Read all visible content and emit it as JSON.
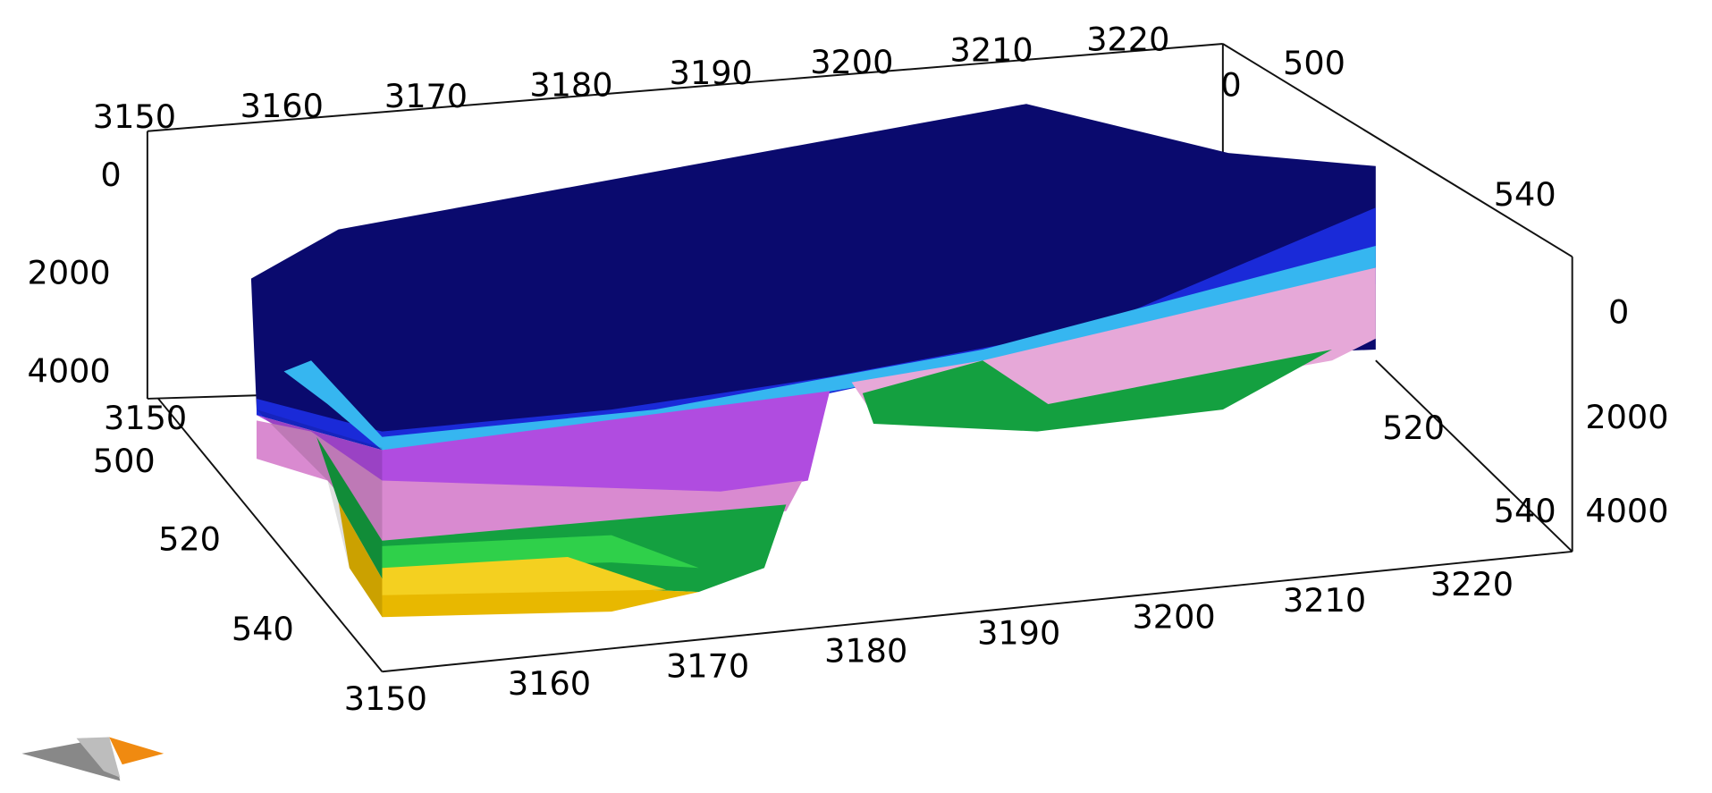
{
  "chart_data": {
    "type": "3d-volume",
    "title": "",
    "x_axis": {
      "ticks": [
        "3150",
        "3160",
        "3170",
        "3180",
        "3190",
        "3200",
        "3210",
        "3220"
      ]
    },
    "y_axis": {
      "ticks": [
        "500",
        "520",
        "540"
      ],
      "corner_label": "0"
    },
    "z_axis": {
      "ticks": [
        "0",
        "2000",
        "4000"
      ]
    },
    "layer_colors": [
      "#0a0a6e",
      "#1a2ad8",
      "#36b6f0",
      "#b04ce0",
      "#d98ad0",
      "#e6a8d8",
      "#14a040",
      "#2fd04a",
      "#e8b800",
      "#f4d020"
    ],
    "grid": false,
    "legend": "none"
  },
  "labels": {
    "top_x": [
      "3150",
      "3160",
      "3170",
      "3180",
      "3190",
      "3200",
      "3210",
      "3220"
    ],
    "bottom_x": [
      "3150",
      "3160",
      "3170",
      "3180",
      "3190",
      "3200",
      "3210",
      "3220"
    ],
    "left_z": [
      "0",
      "2000",
      "4000"
    ],
    "right_z": [
      "0",
      "2000",
      "4000"
    ],
    "left_y": [
      "500",
      "520",
      "540"
    ],
    "right_top": [
      "0",
      "500",
      "540"
    ],
    "right_inner": [
      "520",
      "540"
    ]
  },
  "orientation_icon": "compass-arrow-icon"
}
